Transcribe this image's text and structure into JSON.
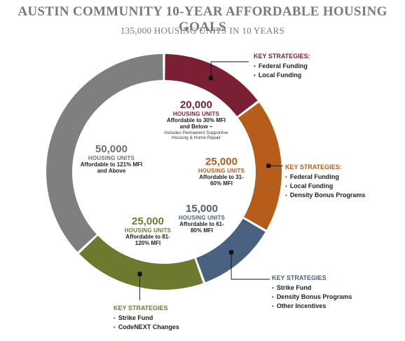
{
  "title": "AUSTIN COMMUNITY 10-YEAR AFFORDABLE HOUSING GOALS",
  "subtitle": "135,000 HOUSING UNITS IN 10 YEARS",
  "chart_data": {
    "type": "pie",
    "total": 135000,
    "slices": [
      {
        "value": 20000,
        "value_label": "20,000",
        "unit": "HOUSING UNITS",
        "desc": "Affordable to 30% MFI and Below –",
        "note": "Includes Permanent Supportive Housing & Home Repair",
        "color": "#7b1f35"
      },
      {
        "value": 25000,
        "value_label": "25,000",
        "unit": "HOUSING UNITS",
        "desc": "Affordable to 31-60% MFI",
        "note": "",
        "color": "#b75d1c"
      },
      {
        "value": 15000,
        "value_label": "15,000",
        "unit": "HOUSING UNITS",
        "desc": "Affordable to 61-80% MFI",
        "note": "",
        "color": "#4a6282"
      },
      {
        "value": 25000,
        "value_label": "25,000",
        "unit": "HOUSING UNITS",
        "desc": "Affordable to 81-120% MFI",
        "note": "",
        "color": "#6c7a30"
      },
      {
        "value": 50000,
        "value_label": "50,000",
        "unit": "HOUSING UNITS",
        "desc": "Affordable to 121% MFI and Above",
        "note": "",
        "color": "#7e7f81"
      }
    ]
  },
  "strategies": [
    {
      "head": "KEY STRATEGIES:",
      "items": [
        "Federal Funding",
        "Local Funding"
      ],
      "color": "#7b1f35"
    },
    {
      "head": "KEY STRATEGIES:",
      "items": [
        "Federal Funding",
        "Local Funding",
        "Density Bonus Programs"
      ],
      "color": "#b75d1c"
    },
    {
      "head": "KEY STRATEGIES",
      "items": [
        "Strike Fund",
        "Density Bonus Programs",
        "Other Incentives"
      ],
      "color": "#4a6282"
    },
    {
      "head": "KEY STRATEGIES",
      "items": [
        "Strike Fund",
        "CodeNEXT Changes"
      ],
      "color": "#6c7a30"
    }
  ],
  "bullet": "•"
}
